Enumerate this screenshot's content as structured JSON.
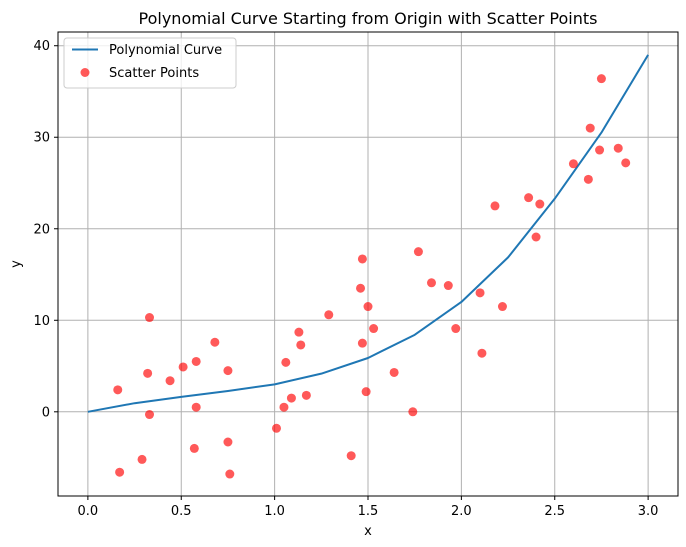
{
  "chart_data": {
    "type": "scatter",
    "title": "Polynomial Curve Starting from Origin with Scatter Points",
    "xlabel": "x",
    "ylabel": "y",
    "xlim": [
      -0.16,
      3.16
    ],
    "ylim": [
      -9.2,
      41.5
    ],
    "xticks": [
      0.0,
      0.5,
      1.0,
      1.5,
      2.0,
      2.5,
      3.0
    ],
    "xtick_labels": [
      "0.0",
      "0.5",
      "1.0",
      "1.5",
      "2.0",
      "2.5",
      "3.0"
    ],
    "yticks": [
      0,
      10,
      20,
      30,
      40
    ],
    "ytick_labels": [
      "0",
      "10",
      "20",
      "30",
      "40"
    ],
    "grid": true,
    "legend_position": "top-left",
    "series": [
      {
        "name": "Polynomial Curve",
        "kind": "line",
        "color": "#1f77b4",
        "x": [
          0.0,
          0.25,
          0.5,
          0.75,
          1.0,
          1.25,
          1.5,
          1.75,
          2.0,
          2.25,
          2.5,
          2.75,
          3.0
        ],
        "y": [
          0.0,
          0.94,
          1.63,
          2.27,
          3.0,
          4.17,
          5.88,
          8.41,
          12.0,
          16.87,
          23.29,
          30.51,
          39.0
        ]
      },
      {
        "name": "Scatter Points",
        "kind": "scatter",
        "color": "#ff0000",
        "x": [
          0.16,
          0.17,
          0.29,
          0.32,
          0.33,
          0.33,
          0.44,
          0.51,
          0.57,
          0.58,
          0.58,
          0.68,
          0.75,
          0.75,
          0.76,
          1.01,
          1.05,
          1.06,
          1.09,
          1.13,
          1.14,
          1.17,
          1.29,
          1.41,
          1.46,
          1.47,
          1.47,
          1.49,
          1.5,
          1.53,
          1.64,
          1.74,
          1.77,
          1.84,
          1.93,
          1.97,
          2.1,
          2.11,
          2.18,
          2.22,
          2.36,
          2.4,
          2.42,
          2.6,
          2.68,
          2.69,
          2.74,
          2.75,
          2.84,
          2.88
        ],
        "y": [
          2.4,
          -6.6,
          -5.2,
          4.2,
          10.3,
          -0.3,
          3.4,
          4.9,
          -4.0,
          5.5,
          0.5,
          7.6,
          4.5,
          -3.3,
          -6.8,
          -1.8,
          0.5,
          5.4,
          1.5,
          8.7,
          7.3,
          1.8,
          10.6,
          -4.8,
          13.5,
          16.7,
          7.5,
          2.2,
          11.5,
          9.1,
          4.3,
          0.0,
          17.5,
          14.1,
          13.8,
          9.1,
          13.0,
          6.4,
          22.5,
          11.5,
          23.4,
          19.1,
          22.7,
          27.1,
          25.4,
          31.0,
          28.6,
          36.4,
          28.8,
          27.2
        ]
      }
    ]
  }
}
